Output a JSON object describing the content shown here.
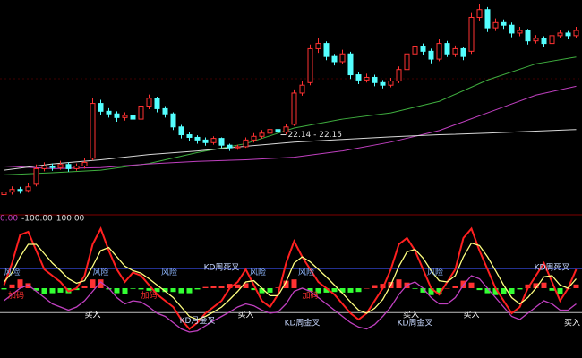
{
  "chart_data": [
    {
      "type": "candlestick",
      "ylim": [
        20.7,
        24.7
      ],
      "up_color": "#ff3232",
      "down_color": "#54ffff",
      "open": [
        21.0,
        21.05,
        21.1,
        21.08,
        21.2,
        21.5,
        21.55,
        21.52,
        21.58,
        21.5,
        21.55,
        21.7,
        22.75,
        22.6,
        22.55,
        22.48,
        22.52,
        22.45,
        22.7,
        22.85,
        22.65,
        22.55,
        22.3,
        22.15,
        22.1,
        22.05,
        22.0,
        22.08,
        21.95,
        21.9,
        21.92,
        22.05,
        22.12,
        22.18,
        22.25,
        22.2,
        22.35,
        22.95,
        23.15,
        23.8,
        23.9,
        23.65,
        23.55,
        23.7,
        23.3,
        23.2,
        23.25,
        23.15,
        23.1,
        23.18,
        23.4,
        23.7,
        23.85,
        23.75,
        23.6,
        23.9,
        23.7,
        23.8,
        23.75,
        24.4,
        24.55,
        24.2,
        24.3,
        24.25,
        24.1,
        24.15,
        23.95,
        24.0,
        23.9,
        24.05,
        24.1,
        24.05
      ],
      "high": [
        21.12,
        21.16,
        21.15,
        21.22,
        21.58,
        21.62,
        21.6,
        21.65,
        21.62,
        21.6,
        21.7,
        22.85,
        22.82,
        22.66,
        22.6,
        22.58,
        22.56,
        22.76,
        22.92,
        22.88,
        22.7,
        22.58,
        22.34,
        22.2,
        22.14,
        22.1,
        22.12,
        22.1,
        21.98,
        21.96,
        22.1,
        22.18,
        22.24,
        22.3,
        22.28,
        22.36,
        23.02,
        23.18,
        23.88,
        24.0,
        23.94,
        23.7,
        23.78,
        23.74,
        23.36,
        23.32,
        23.3,
        23.2,
        23.24,
        23.46,
        23.78,
        23.92,
        23.9,
        23.8,
        23.98,
        23.95,
        23.86,
        23.84,
        24.5,
        24.66,
        24.6,
        24.38,
        24.36,
        24.3,
        24.22,
        24.18,
        24.06,
        24.04,
        24.12,
        24.16,
        24.14,
        24.22
      ],
      "low": [
        20.95,
        21.0,
        21.02,
        21.04,
        21.16,
        21.45,
        21.46,
        21.48,
        21.44,
        21.46,
        21.5,
        21.66,
        22.52,
        22.48,
        22.4,
        22.42,
        22.38,
        22.42,
        22.64,
        22.58,
        22.48,
        22.24,
        22.08,
        22.04,
        21.98,
        21.94,
        21.96,
        21.9,
        21.84,
        21.86,
        21.9,
        22.0,
        22.08,
        22.14,
        22.14,
        22.16,
        22.32,
        22.9,
        23.1,
        23.72,
        23.58,
        23.48,
        23.5,
        23.22,
        23.12,
        23.15,
        23.08,
        23.04,
        23.06,
        23.14,
        23.36,
        23.64,
        23.68,
        23.52,
        23.56,
        23.64,
        23.64,
        23.58,
        23.7,
        24.34,
        24.12,
        24.14,
        24.18,
        24.02,
        24.04,
        23.88,
        23.9,
        23.84,
        23.86,
        24.0,
        23.98,
        24.0
      ],
      "close": [
        21.05,
        21.1,
        21.08,
        21.15,
        21.5,
        21.55,
        21.52,
        21.58,
        21.5,
        21.55,
        21.62,
        22.75,
        22.6,
        22.55,
        22.48,
        22.52,
        22.45,
        22.7,
        22.85,
        22.65,
        22.55,
        22.3,
        22.15,
        22.1,
        22.05,
        22.0,
        22.08,
        21.95,
        21.9,
        21.92,
        22.05,
        22.12,
        22.18,
        22.25,
        22.2,
        22.3,
        22.95,
        23.1,
        23.8,
        23.9,
        23.65,
        23.55,
        23.7,
        23.3,
        23.2,
        23.25,
        23.15,
        23.1,
        23.18,
        23.4,
        23.7,
        23.85,
        23.75,
        23.6,
        23.9,
        23.7,
        23.8,
        23.65,
        24.4,
        24.55,
        24.2,
        24.3,
        24.25,
        24.1,
        24.15,
        23.95,
        24.0,
        23.9,
        24.05,
        24.1,
        24.05,
        24.15
      ],
      "lines": [
        {
          "color": "#3fae3f",
          "x": [
            0,
            6,
            12,
            18,
            24,
            30,
            36,
            42,
            48,
            54,
            60,
            66,
            71
          ],
          "values": [
            21.38,
            21.42,
            21.47,
            21.6,
            21.81,
            21.98,
            22.28,
            22.45,
            22.57,
            22.79,
            23.2,
            23.51,
            23.64
          ]
        },
        {
          "color": "#c040c0",
          "x": [
            0,
            6,
            12,
            18,
            24,
            30,
            36,
            42,
            48,
            54,
            60,
            66,
            71
          ],
          "values": [
            21.55,
            21.5,
            21.52,
            21.59,
            21.64,
            21.67,
            21.72,
            21.84,
            22.01,
            22.23,
            22.57,
            22.91,
            23.08
          ]
        },
        {
          "color": "#d8d8d8",
          "x": [
            0,
            6,
            12,
            18,
            24,
            30,
            36,
            42,
            48,
            54,
            60,
            66,
            71
          ],
          "values": [
            21.47,
            21.59,
            21.67,
            21.77,
            21.84,
            21.93,
            22.01,
            22.06,
            22.11,
            22.15,
            22.18,
            22.22,
            22.25
          ]
        }
      ],
      "annotations": [
        {
          "text": "22.14 - 22.15",
          "x": 35,
          "y": 22.15,
          "color": "#e0e0e0"
        }
      ]
    },
    {
      "type": "oscillator",
      "header": [
        {
          "text": "0.00",
          "color": "#c040c0"
        },
        {
          "text": "-100.00",
          "color": "#e0e0e0"
        },
        {
          "text": "100.00",
          "color": "#e0e0e0"
        }
      ],
      "ylim": [
        -100,
        100
      ],
      "hlines": [
        {
          "value": 31,
          "color": "#3040c0"
        },
        {
          "value": -39,
          "color": "#c0c0c0"
        }
      ],
      "histogram": {
        "up_color": "#ff3232",
        "down_color": "#33ff33",
        "values": [
          -2,
          6,
          14,
          8,
          -4,
          -10,
          -8,
          -7,
          -8,
          -3,
          3,
          14,
          14,
          -2,
          -8,
          -10,
          -1,
          -2,
          -4,
          -6,
          -6,
          -6,
          -8,
          -8,
          -2,
          2,
          3,
          4,
          7,
          6,
          8,
          -3,
          -8,
          -7,
          1,
          12,
          14,
          0,
          -5,
          -8,
          -7,
          -6,
          -7,
          -7,
          -6,
          0,
          5,
          7,
          10,
          14,
          9,
          -1,
          -7,
          -11,
          -9,
          0,
          4,
          12,
          9,
          -3,
          -8,
          -11,
          -10,
          -10,
          -2,
          6,
          8,
          9,
          -4,
          -10,
          0,
          6
        ]
      },
      "series": [
        {
          "color": "#c040c0",
          "values": [
            -20,
            -10,
            0,
            5,
            -5,
            -15,
            -25,
            -30,
            -35,
            -30,
            -20,
            -5,
            10,
            0,
            -15,
            -25,
            -20,
            -22,
            -30,
            -40,
            -45,
            -55,
            -65,
            -70,
            -68,
            -60,
            -52,
            -45,
            -38,
            -30,
            -25,
            -28,
            -35,
            -40,
            -38,
            -25,
            -5,
            0,
            -5,
            -15,
            -25,
            -35,
            -45,
            -55,
            -62,
            -65,
            -58,
            -45,
            -30,
            -10,
            5,
            10,
            0,
            -15,
            -25,
            -25,
            -15,
            5,
            20,
            15,
            0,
            -15,
            -30,
            -45,
            -50,
            -40,
            -30,
            -20,
            -25,
            -35,
            -35,
            -25
          ]
        },
        {
          "color": "#ff2020",
          "values": [
            5,
            40,
            85,
            90,
            60,
            30,
            20,
            10,
            -5,
            0,
            20,
            70,
            95,
            60,
            30,
            10,
            25,
            20,
            5,
            -10,
            -20,
            -30,
            -50,
            -65,
            -55,
            -40,
            -30,
            -20,
            0,
            10,
            30,
            5,
            -20,
            -30,
            -10,
            40,
            75,
            50,
            30,
            10,
            0,
            -10,
            -25,
            -40,
            -50,
            -40,
            -20,
            0,
            30,
            70,
            80,
            60,
            30,
            0,
            -10,
            10,
            30,
            80,
            95,
            60,
            30,
            0,
            -20,
            -40,
            -30,
            0,
            20,
            40,
            10,
            -20,
            0,
            30
          ]
        },
        {
          "color": "#ffff80",
          "values": [
            10,
            25,
            50,
            70,
            70,
            55,
            40,
            28,
            15,
            8,
            12,
            35,
            60,
            65,
            50,
            35,
            28,
            24,
            15,
            5,
            -5,
            -15,
            -30,
            -45,
            -50,
            -45,
            -38,
            -30,
            -18,
            -5,
            10,
            12,
            0,
            -12,
            -12,
            10,
            40,
            50,
            42,
            30,
            18,
            5,
            -8,
            -22,
            -35,
            -40,
            -32,
            -18,
            5,
            35,
            58,
            62,
            48,
            28,
            12,
            10,
            20,
            50,
            72,
            68,
            50,
            28,
            5,
            -15,
            -25,
            -15,
            0,
            18,
            20,
            5,
            0,
            15
          ]
        }
      ],
      "annotations": [
        {
          "text": "风险",
          "x": 1,
          "y": 25,
          "color": "#8fb8ff"
        },
        {
          "text": "风险",
          "x": 12,
          "y": 25,
          "color": "#8fb8ff"
        },
        {
          "text": "风险",
          "x": 20.5,
          "y": 25,
          "color": "#8fb8ff"
        },
        {
          "text": "风险",
          "x": 31.5,
          "y": 25,
          "color": "#8fb8ff"
        },
        {
          "text": "风险",
          "x": 37.5,
          "y": 25,
          "color": "#8fb8ff"
        },
        {
          "text": "风险",
          "x": 53.5,
          "y": 25,
          "color": "#8fb8ff"
        },
        {
          "text": "KD周死叉",
          "x": 27,
          "y": 33,
          "color": "#c8d8ff"
        },
        {
          "text": "KD周死叉",
          "x": 68,
          "y": 33,
          "color": "#c8d8ff"
        },
        {
          "text": "加码",
          "x": 1.5,
          "y": -12,
          "color": "#ff3030"
        },
        {
          "text": "加码",
          "x": 18,
          "y": -12,
          "color": "#ff3030"
        },
        {
          "text": "加码",
          "x": 38,
          "y": -12,
          "color": "#ff3030"
        },
        {
          "text": "买入",
          "x": 11,
          "y": -43,
          "color": "#ffffff"
        },
        {
          "text": "买入",
          "x": 30,
          "y": -43,
          "color": "#ffffff"
        },
        {
          "text": "买入",
          "x": 50.5,
          "y": -43,
          "color": "#ffffff"
        },
        {
          "text": "买入",
          "x": 58,
          "y": -43,
          "color": "#ffffff"
        },
        {
          "text": "买入",
          "x": 70.5,
          "y": -56,
          "color": "#ffffff"
        },
        {
          "text": "KD月金叉",
          "x": 24,
          "y": -52,
          "color": "#c8d8ff"
        },
        {
          "text": "KD周金叉",
          "x": 37,
          "y": -56,
          "color": "#c8d8ff"
        },
        {
          "text": "KD周金叉",
          "x": 51,
          "y": -56,
          "color": "#c8d8ff"
        }
      ]
    }
  ]
}
